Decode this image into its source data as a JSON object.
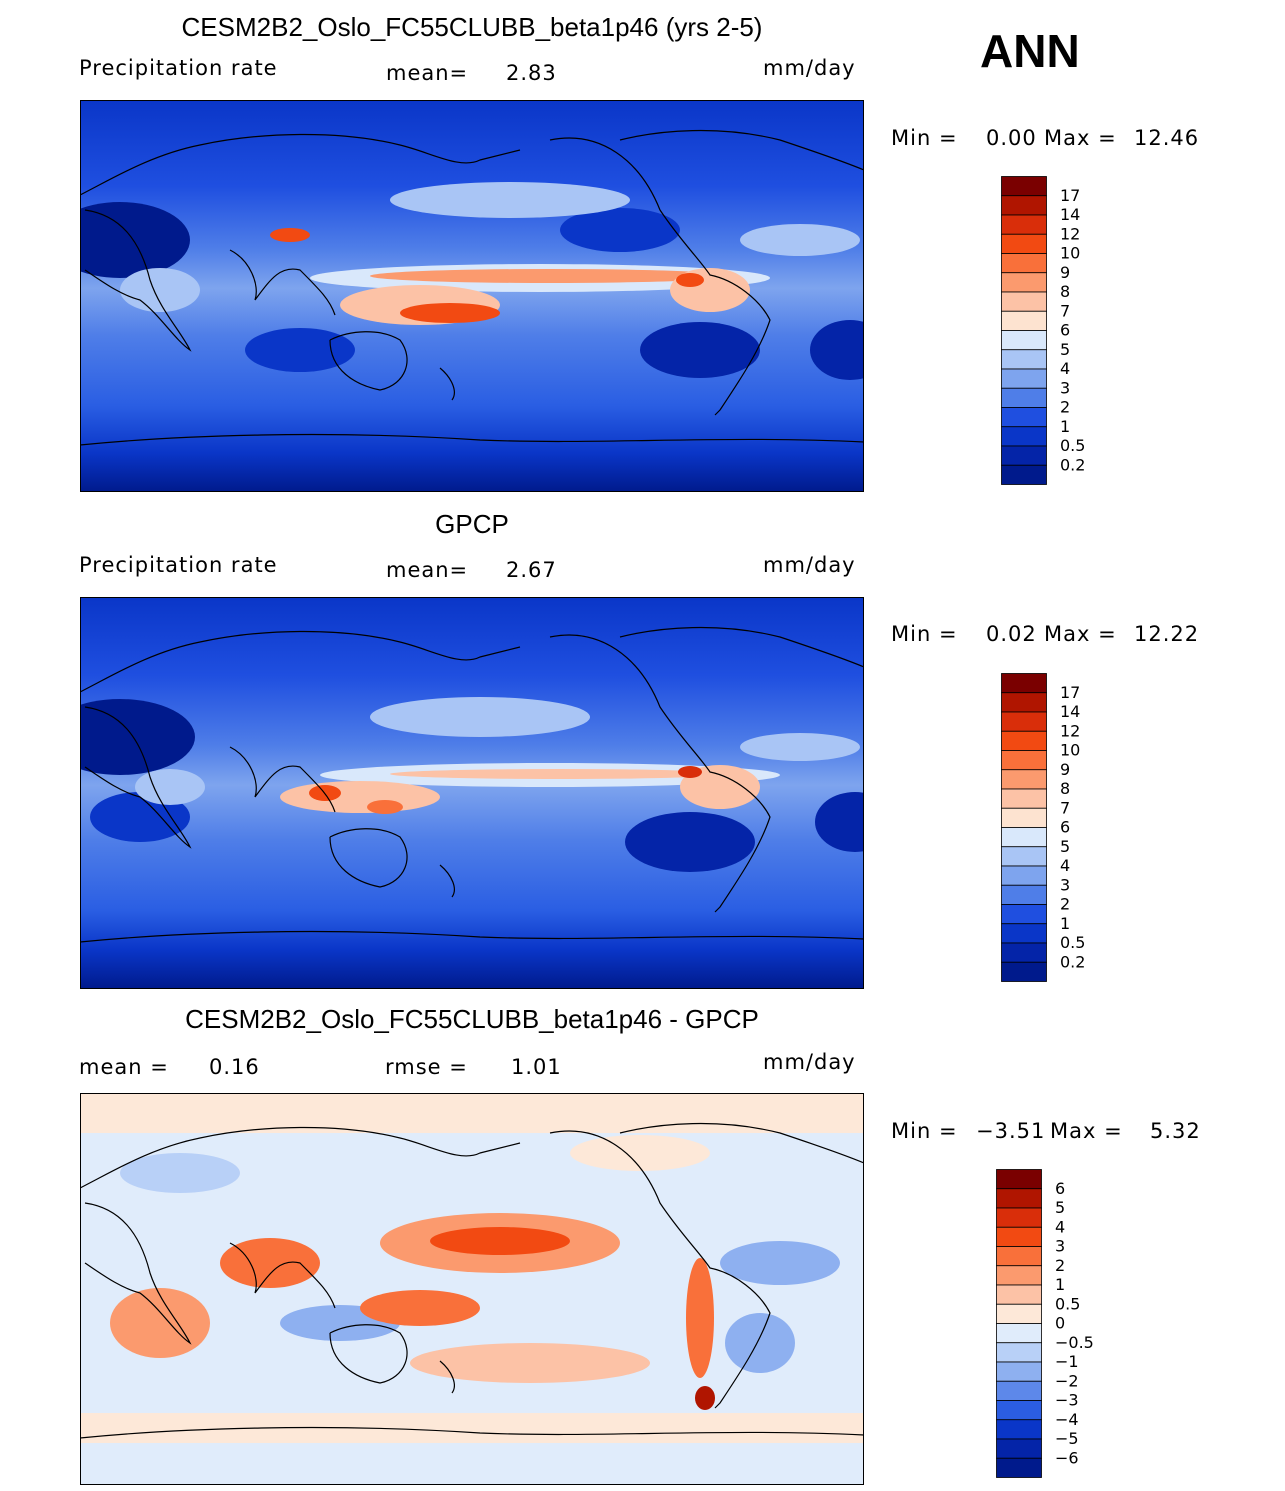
{
  "season": "ANN",
  "colors": {
    "deep_blue": "#001a8c",
    "mid_blue": "#1f4fe0",
    "light_blue": "#a9c5f5",
    "cream": "#fde3d0",
    "orange": "#f47a45",
    "red": "#c41e0a",
    "dark_red": "#7a0000",
    "coast": "#000000"
  },
  "chart_data": [
    {
      "type": "heatmap",
      "title": "CESM2B2_Oslo_FC55CLUBB_beta1p46 (yrs 2-5)",
      "variable": "Precipitation  rate",
      "mean_label": "mean=",
      "mean_value": "2.83",
      "units": "mm/day",
      "min_label": "Min  =",
      "min_value": "0.00",
      "max_label": "Max  =",
      "max_value": "12.46",
      "colorbar_levels": [
        "17",
        "14",
        "12",
        "10",
        "9",
        "8",
        "7",
        "6",
        "5",
        "4",
        "3",
        "2",
        "1",
        "0.5",
        "0.2"
      ],
      "colorbar_colors": [
        "#7a0000",
        "#b01500",
        "#d92e0a",
        "#f24a12",
        "#f9703a",
        "#fb9a6e",
        "#fcc2a6",
        "#fde3d0",
        "#d9e8fb",
        "#a9c5f5",
        "#7ea4ee",
        "#4f7ee8",
        "#1f4fe0",
        "#0a36c8",
        "#0424a8",
        "#001a8c"
      ]
    },
    {
      "type": "heatmap",
      "title": "GPCP",
      "variable": "Precipitation  rate",
      "mean_label": "mean=",
      "mean_value": "2.67",
      "units": "mm/day",
      "min_label": "Min  =",
      "min_value": "0.02",
      "max_label": "Max  =",
      "max_value": "12.22",
      "colorbar_levels": [
        "17",
        "14",
        "12",
        "10",
        "9",
        "8",
        "7",
        "6",
        "5",
        "4",
        "3",
        "2",
        "1",
        "0.5",
        "0.2"
      ],
      "colorbar_colors": [
        "#7a0000",
        "#b01500",
        "#d92e0a",
        "#f24a12",
        "#f9703a",
        "#fb9a6e",
        "#fcc2a6",
        "#fde3d0",
        "#d9e8fb",
        "#a9c5f5",
        "#7ea4ee",
        "#4f7ee8",
        "#1f4fe0",
        "#0a36c8",
        "#0424a8",
        "#001a8c"
      ]
    },
    {
      "type": "heatmap",
      "title": "CESM2B2_Oslo_FC55CLUBB_beta1p46 - GPCP",
      "mean_label": "mean  =",
      "mean_value": "0.16",
      "rmse_label": "rmse  =",
      "rmse_value": "1.01",
      "units": "mm/day",
      "min_label": "Min  =",
      "min_value": "−3.51",
      "max_label": "Max  =",
      "max_value": "5.32",
      "colorbar_levels": [
        "6",
        "5",
        "4",
        "3",
        "2",
        "1",
        "0.5",
        "0",
        "−0.5",
        "−1",
        "−2",
        "−3",
        "−4",
        "−5",
        "−6"
      ],
      "colorbar_colors": [
        "#7a0000",
        "#b01500",
        "#d92e0a",
        "#f24a12",
        "#f9703a",
        "#fb9a6e",
        "#fcc2a6",
        "#fde8d8",
        "#e0ecfb",
        "#b8d0f7",
        "#8eb0f0",
        "#5d88ea",
        "#2b5de2",
        "#0a36c8",
        "#0424a8",
        "#001a8c"
      ]
    }
  ]
}
